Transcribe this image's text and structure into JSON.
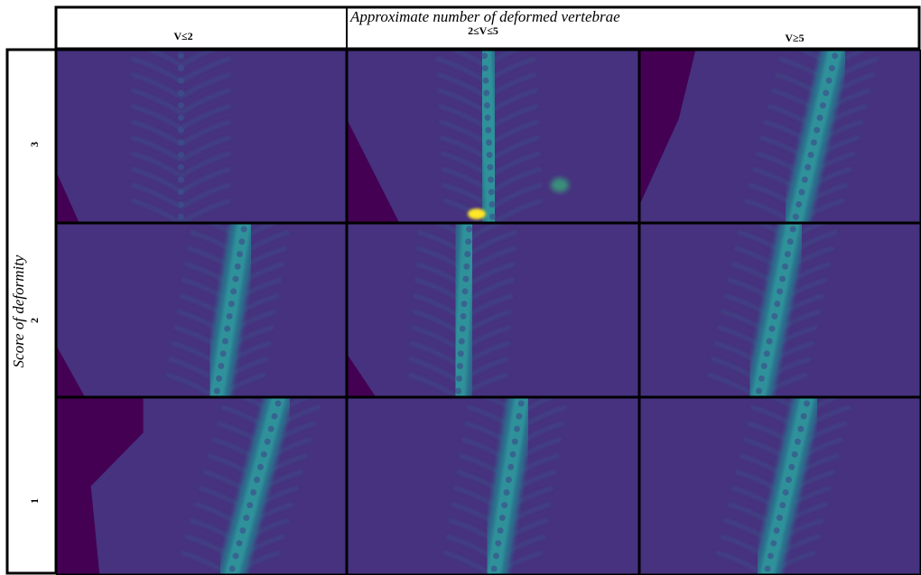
{
  "header": {
    "title": "Approximate number of deformed vertebrae",
    "columns": [
      "V≤2",
      "2≤V≤5",
      "V≥5"
    ]
  },
  "rows": {
    "title": "Score of deformity",
    "labels": [
      "3",
      "2",
      "1"
    ]
  }
}
